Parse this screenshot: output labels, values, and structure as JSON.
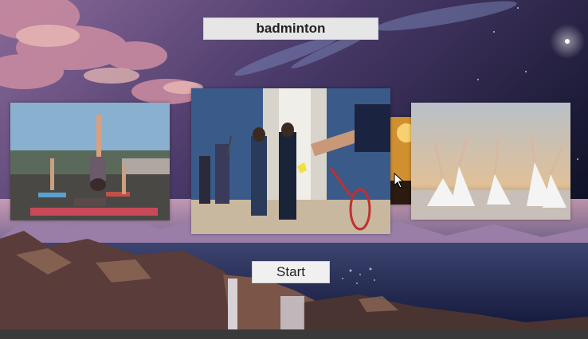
{
  "header": {
    "title": "badminton"
  },
  "controls": {
    "start_label": "Start"
  },
  "gallery": {
    "left": {
      "subject": "yoga"
    },
    "center": {
      "subject": "badminton"
    },
    "right": {
      "subject": "ballet"
    }
  },
  "colors": {
    "title_box_bg": "#e6e6e6",
    "button_bg": "#f0f0f0",
    "bottom_bar": "#3a3a3a"
  },
  "icons": [
    "cursor-arrow-icon"
  ]
}
